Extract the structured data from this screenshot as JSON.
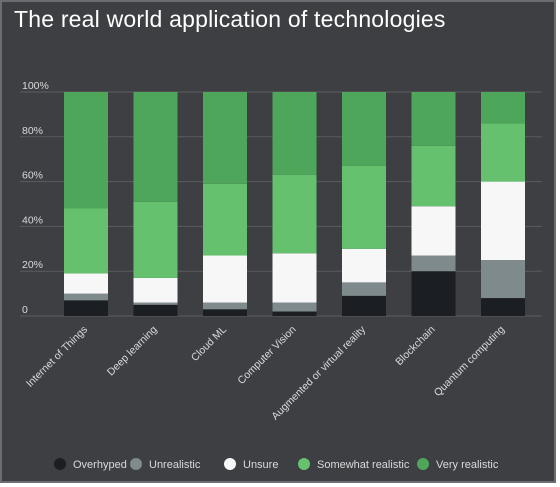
{
  "title": "The real world application of technologies",
  "chart_data": {
    "type": "bar",
    "stacked": true,
    "categories": [
      "Internet of Things",
      "Deep learning",
      "Cloud ML",
      "Computer Vision",
      "Augmented or virtual reality",
      "Blockchain",
      "Quantum computing"
    ],
    "series": [
      {
        "name": "Overhyped",
        "color": "#1b1e22",
        "values": [
          7,
          5,
          3,
          2,
          9,
          20,
          8
        ]
      },
      {
        "name": "Unrealistic",
        "color": "#7f8a8c",
        "values": [
          3,
          1,
          3,
          4,
          6,
          7,
          17
        ]
      },
      {
        "name": "Unsure",
        "color": "#f7f7f7",
        "values": [
          9,
          11,
          21,
          22,
          15,
          22,
          35
        ]
      },
      {
        "name": "Somewhat realistic",
        "color": "#66c16f",
        "values": [
          29,
          34,
          32,
          35,
          37,
          27,
          26
        ]
      },
      {
        "name": "Very realistic",
        "color": "#4ea65a",
        "values": [
          52,
          49,
          41,
          37,
          33,
          24,
          14
        ]
      }
    ],
    "yticks": [
      "0",
      "20%",
      "40%",
      "60%",
      "80%",
      "100%"
    ],
    "ylim": [
      0,
      100
    ],
    "legend_position": "bottom",
    "grid": true
  }
}
